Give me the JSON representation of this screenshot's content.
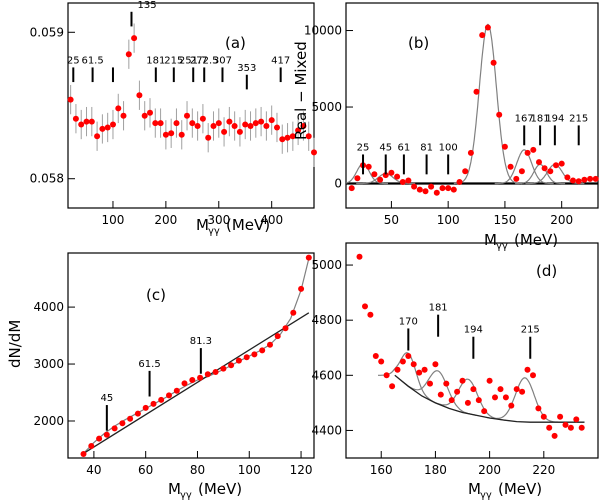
{
  "chart_data": [
    {
      "id": "a",
      "type": "scatter",
      "panel_label": "(a)",
      "xlabel": "M",
      "xlabel_sub": "γγ",
      "xlabel_unit": "(MeV)",
      "ylabel": "",
      "xlim": [
        15,
        480
      ],
      "ylim": [
        0.0578,
        0.0592
      ],
      "xticks": [
        100,
        200,
        300,
        400
      ],
      "yticks": [
        0.058,
        0.059
      ],
      "grid": false,
      "marker_lines": [
        {
          "label": "25",
          "x": 25,
          "y_low": 0.05866,
          "y_high": 0.05876
        },
        {
          "label": "61.5",
          "x": 61.5,
          "y_low": 0.05866,
          "y_high": 0.05876
        },
        {
          "label": "",
          "x": 100,
          "y_low": 0.05866,
          "y_high": 0.05876
        },
        {
          "label": "135",
          "x": 135,
          "y_low": 0.05904,
          "y_high": 0.05914
        },
        {
          "label": "181",
          "x": 181,
          "y_low": 0.05866,
          "y_high": 0.05876
        },
        {
          "label": "215",
          "x": 215,
          "y_low": 0.05866,
          "y_high": 0.05876
        },
        {
          "label": "251.7",
          "x": 251.7,
          "y_low": 0.05866,
          "y_high": 0.05876
        },
        {
          "label": "272.5",
          "x": 272.5,
          "y_low": 0.05866,
          "y_high": 0.05876
        },
        {
          "label": "307",
          "x": 307,
          "y_low": 0.05866,
          "y_high": 0.05876
        },
        {
          "label": "353",
          "x": 353,
          "y_low": 0.05861,
          "y_high": 0.05871
        },
        {
          "label": "417",
          "x": 417,
          "y_low": 0.05866,
          "y_high": 0.05876
        }
      ],
      "x": [
        20,
        30,
        40,
        50,
        60,
        70,
        80,
        90,
        100,
        110,
        120,
        130,
        140,
        150,
        160,
        170,
        180,
        190,
        200,
        210,
        220,
        230,
        240,
        250,
        260,
        270,
        280,
        290,
        300,
        310,
        320,
        330,
        340,
        350,
        360,
        370,
        380,
        390,
        400,
        410,
        420,
        430,
        440,
        450,
        460,
        470,
        480
      ],
      "y": [
        0.05854,
        0.05841,
        0.05837,
        0.05839,
        0.05839,
        0.05829,
        0.05834,
        0.05835,
        0.05837,
        0.05848,
        0.05843,
        0.05885,
        0.05896,
        0.05857,
        0.05843,
        0.05845,
        0.05838,
        0.05838,
        0.0583,
        0.05831,
        0.05838,
        0.0583,
        0.05843,
        0.05838,
        0.05836,
        0.05841,
        0.05828,
        0.05836,
        0.05838,
        0.05832,
        0.05839,
        0.05836,
        0.05832,
        0.05837,
        0.05836,
        0.05838,
        0.05839,
        0.05836,
        0.0584,
        0.05835,
        0.05827,
        0.05828,
        0.05829,
        0.05833,
        0.05836,
        0.05829,
        0.05818
      ],
      "err": 0.0001
    },
    {
      "id": "b",
      "type": "scatter",
      "panel_label": "(b)",
      "xlabel": "M",
      "xlabel_sub": "γγ",
      "xlabel_unit": "(MeV)",
      "ylabel": "Real − Mixed",
      "xlim": [
        10,
        232
      ],
      "ylim": [
        -1600,
        11800
      ],
      "xticks": [
        50,
        100,
        150,
        200
      ],
      "yticks": [
        0,
        5000,
        10000
      ],
      "grid": false,
      "zero_line": true,
      "marker_lines": [
        {
          "label": "25",
          "x": 25,
          "y_low": 600,
          "y_high": 1900
        },
        {
          "label": "45",
          "x": 45,
          "y_low": 600,
          "y_high": 1900
        },
        {
          "label": "61",
          "x": 61,
          "y_low": 600,
          "y_high": 1900
        },
        {
          "label": "81",
          "x": 81,
          "y_low": 600,
          "y_high": 1900
        },
        {
          "label": "100",
          "x": 100,
          "y_low": 600,
          "y_high": 1900
        },
        {
          "label": "167",
          "x": 167,
          "y_low": 2500,
          "y_high": 3800
        },
        {
          "label": "181",
          "x": 181,
          "y_low": 2500,
          "y_high": 3800
        },
        {
          "label": "194",
          "x": 194,
          "y_low": 2500,
          "y_high": 3800
        },
        {
          "label": "215",
          "x": 215,
          "y_low": 2500,
          "y_high": 3800
        }
      ],
      "x": [
        15,
        20,
        25,
        30,
        35,
        40,
        45,
        50,
        55,
        60,
        65,
        70,
        75,
        80,
        85,
        90,
        95,
        100,
        105,
        110,
        115,
        120,
        125,
        130,
        135,
        140,
        145,
        150,
        155,
        160,
        165,
        170,
        175,
        180,
        185,
        190,
        195,
        200,
        205,
        210,
        215,
        220,
        225,
        230
      ],
      "y": [
        -300,
        350,
        1200,
        1100,
        600,
        250,
        550,
        700,
        450,
        100,
        200,
        -200,
        -400,
        -500,
        -200,
        -600,
        -300,
        -300,
        -400,
        100,
        800,
        2000,
        6000,
        9700,
        10200,
        7900,
        4500,
        2400,
        1100,
        300,
        800,
        2000,
        2200,
        1400,
        1000,
        800,
        1200,
        1300,
        400,
        200,
        150,
        250,
        300,
        300
      ],
      "fit_peaks": [
        {
          "center": 25,
          "amp": 1300,
          "sigma": 5.5
        },
        {
          "center": 45,
          "amp": 650,
          "sigma": 6.5
        },
        {
          "center": 135,
          "amp": 10400,
          "sigma": 7.5
        },
        {
          "center": 167,
          "amp": 2200,
          "sigma": 6.5
        },
        {
          "center": 181,
          "amp": 1250,
          "sigma": 5.5
        },
        {
          "center": 194,
          "amp": 1250,
          "sigma": 6.5
        }
      ]
    },
    {
      "id": "c",
      "type": "scatter",
      "panel_label": "(c)",
      "xlabel": "M",
      "xlabel_sub": "γγ",
      "xlabel_unit": "(MeV)",
      "ylabel": "dN/dM",
      "xlim": [
        30,
        125
      ],
      "ylim": [
        1350,
        4950
      ],
      "xticks": [
        40,
        60,
        80,
        100,
        120
      ],
      "yticks": [
        2000,
        3000,
        4000
      ],
      "grid": false,
      "marker_lines": [
        {
          "label": "45",
          "x": 45,
          "y_low": 1830,
          "y_high": 2280
        },
        {
          "label": "61.5",
          "x": 61.5,
          "y_low": 2430,
          "y_high": 2880
        },
        {
          "label": "81.3",
          "x": 81.3,
          "y_low": 2830,
          "y_high": 3280
        }
      ],
      "x": [
        36,
        39,
        42,
        45,
        48,
        51,
        54,
        57,
        60,
        63,
        66,
        69,
        72,
        75,
        78,
        81,
        84,
        87,
        90,
        93,
        96,
        99,
        102,
        105,
        108,
        111,
        114,
        117,
        120,
        123
      ],
      "y": [
        1420,
        1560,
        1690,
        1760,
        1870,
        1960,
        2040,
        2130,
        2230,
        2300,
        2370,
        2450,
        2530,
        2660,
        2720,
        2760,
        2820,
        2860,
        2920,
        2980,
        3060,
        3120,
        3170,
        3240,
        3340,
        3490,
        3630,
        3900,
        4320,
        4870
      ],
      "fit_curve": {
        "x": [
          36,
          40,
          44,
          48,
          52,
          56,
          60,
          64,
          68,
          72,
          76,
          80,
          84,
          88,
          92,
          96,
          100,
          104,
          108,
          112,
          116,
          120,
          123
        ],
        "y": [
          1430,
          1620,
          1780,
          1910,
          2020,
          2120,
          2220,
          2320,
          2420,
          2530,
          2630,
          2720,
          2780,
          2860,
          2950,
          3050,
          3140,
          3230,
          3340,
          3520,
          3800,
          4300,
          4850
        ]
      },
      "background_line": {
        "x": [
          36,
          123
        ],
        "y": [
          1430,
          3900
        ]
      }
    },
    {
      "id": "d",
      "type": "scatter",
      "panel_label": "(d)",
      "xlabel": "M",
      "xlabel_sub": "γγ",
      "xlabel_unit": "(MeV)",
      "ylabel": "",
      "xlim": [
        147,
        240
      ],
      "ylim": [
        4300,
        5080
      ],
      "xticks": [
        160,
        180,
        200,
        220
      ],
      "yticks": [
        4400,
        4600,
        4800,
        5000
      ],
      "grid": false,
      "marker_lines": [
        {
          "label": "170",
          "x": 170,
          "y_low": 4690,
          "y_high": 4770
        },
        {
          "label": "181",
          "x": 181,
          "y_low": 4740,
          "y_high": 4820
        },
        {
          "label": "194",
          "x": 194,
          "y_low": 4660,
          "y_high": 4740
        },
        {
          "label": "215",
          "x": 215,
          "y_low": 4660,
          "y_high": 4740
        }
      ],
      "x": [
        152,
        154,
        156,
        158,
        160,
        162,
        164,
        166,
        168,
        170,
        172,
        174,
        176,
        178,
        180,
        182,
        184,
        186,
        188,
        190,
        192,
        194,
        196,
        198,
        200,
        202,
        204,
        206,
        208,
        210,
        212,
        214,
        216,
        218,
        220,
        222,
        224,
        226,
        228,
        230,
        232,
        234
      ],
      "y": [
        5030,
        4850,
        4820,
        4670,
        4650,
        4600,
        4560,
        4620,
        4650,
        4670,
        4640,
        4610,
        4620,
        4570,
        4640,
        4530,
        4570,
        4510,
        4540,
        4580,
        4500,
        4550,
        4510,
        4470,
        4580,
        4520,
        4550,
        4520,
        4490,
        4550,
        4540,
        4620,
        4600,
        4480,
        4450,
        4410,
        4380,
        4450,
        4420,
        4410,
        4440,
        4410
      ],
      "background_curve": {
        "x": [
          165,
          170,
          175,
          180,
          185,
          190,
          195,
          200,
          205,
          210,
          215,
          220,
          225,
          230,
          235
        ],
        "y": [
          4600,
          4560,
          4525,
          4500,
          4480,
          4465,
          4455,
          4445,
          4438,
          4432,
          4430,
          4430,
          4430,
          4430,
          4430
        ]
      },
      "fit_peaks": [
        {
          "center": 170,
          "amp": 120,
          "sigma": 2.8
        },
        {
          "center": 181,
          "amp": 120,
          "sigma": 3.5
        },
        {
          "center": 192,
          "amp": 125,
          "sigma": 3.5
        },
        {
          "center": 213,
          "amp": 160,
          "sigma": 3.5
        }
      ]
    }
  ]
}
